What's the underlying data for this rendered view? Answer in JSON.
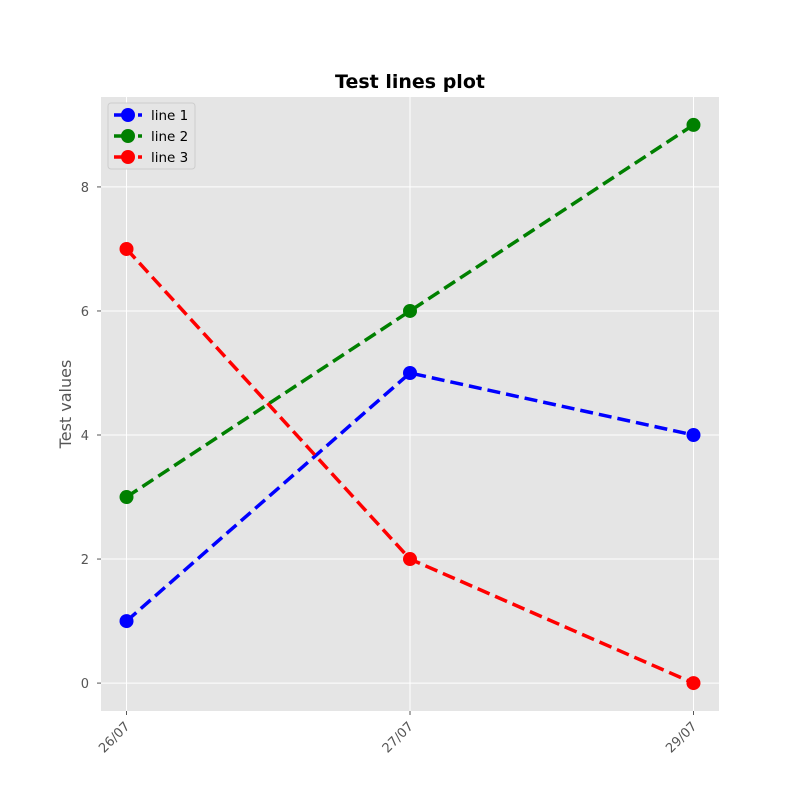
{
  "chart_data": {
    "type": "line",
    "title": "Test lines plot",
    "xlabel": "",
    "ylabel": "Test values",
    "categories": [
      "26/07",
      "27/07",
      "29/07"
    ],
    "x_positions": [
      0,
      1,
      2
    ],
    "xlim": [
      -0.09,
      2.09
    ],
    "ylim": [
      -0.45,
      9.45
    ],
    "yticks": [
      0,
      2,
      4,
      6,
      8
    ],
    "grid": true,
    "legend_position": "top-left",
    "line_style": "dashed",
    "marker": "circle",
    "series": [
      {
        "name": "line 1",
        "color": "#0000ff",
        "values": [
          1,
          5,
          4
        ]
      },
      {
        "name": "line 2",
        "color": "#008000",
        "values": [
          3,
          6,
          9
        ]
      },
      {
        "name": "line 3",
        "color": "#ff0000",
        "values": [
          7,
          2,
          0
        ]
      }
    ]
  }
}
